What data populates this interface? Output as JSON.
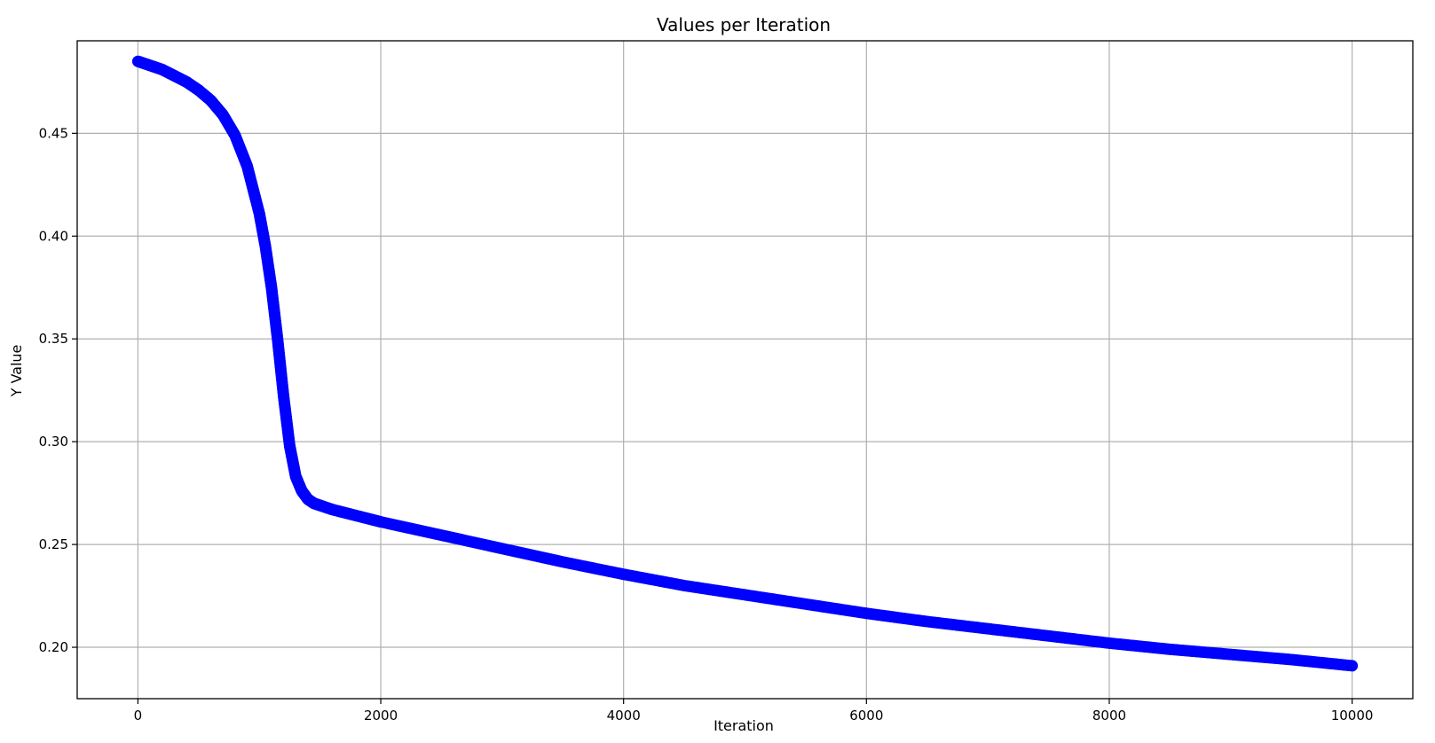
{
  "chart_data": {
    "type": "scatter",
    "title": "Values per Iteration",
    "xlabel": "Iteration",
    "ylabel": "Y Value",
    "xlim": [
      -500,
      10500
    ],
    "ylim": [
      0.175,
      0.495
    ],
    "xticks": [
      0,
      2000,
      4000,
      6000,
      8000,
      10000
    ],
    "yticks": [
      0.2,
      0.25,
      0.3,
      0.35,
      0.4,
      0.45
    ],
    "xtick_labels": [
      "0",
      "2000",
      "4000",
      "6000",
      "8000",
      "10000"
    ],
    "ytick_labels": [
      "0.20",
      "0.25",
      "0.30",
      "0.35",
      "0.40",
      "0.45"
    ],
    "grid": true,
    "color": "#0000ff",
    "series": [
      {
        "x": [
          0,
          100,
          200,
          300,
          400,
          500,
          600,
          700,
          800,
          900,
          1000,
          1050,
          1100,
          1150,
          1200,
          1250,
          1300,
          1350,
          1400,
          1450,
          1500,
          1600,
          1800,
          2000,
          2500,
          3000,
          3500,
          4000,
          4500,
          5000,
          5500,
          6000,
          6500,
          7000,
          7500,
          8000,
          8500,
          9000,
          9500,
          10000
        ],
        "y": [
          0.485,
          0.483,
          0.481,
          0.478,
          0.475,
          0.471,
          0.466,
          0.459,
          0.449,
          0.434,
          0.411,
          0.395,
          0.375,
          0.35,
          0.322,
          0.298,
          0.283,
          0.276,
          0.272,
          0.27,
          0.269,
          0.267,
          0.264,
          0.261,
          0.2545,
          0.248,
          0.2415,
          0.2355,
          0.23,
          0.2255,
          0.221,
          0.2165,
          0.2125,
          0.209,
          0.2055,
          0.202,
          0.199,
          0.1965,
          0.194,
          0.191
        ]
      }
    ]
  }
}
